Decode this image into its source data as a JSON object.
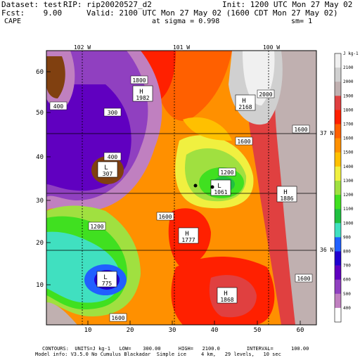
{
  "header": {
    "dataset": "Dataset: test",
    "rip": "RIP: rip20020527_d2",
    "init": "Init: 1200 UTC Mon 27 May 02",
    "fcst": "Fcst:    9.00",
    "valid": "Valid: 2100 UTC Mon 27 May 02 (1600 CDT Mon 27 May 02)",
    "field": "CAPE",
    "sigma": "at sigma = 0.998",
    "sm": "sm= 1"
  },
  "footer": {
    "contours": "CONTOURS:  UNITS=J kg-1   LOW=    300.00      HIGH=   2100.0         INTERVAL=      100.00",
    "model": "Model info: V3.5.0 No Cumulus Blackadar  Simple ice     4 km,   29 levels,   10 sec"
  },
  "axes": {
    "x_ticks": [
      "10",
      "20",
      "30",
      "40",
      "50",
      "60"
    ],
    "y_ticks": [
      "60",
      "50",
      "40",
      "30",
      "20",
      "10"
    ],
    "lon_labels": [
      "102 W",
      "101 W",
      "100 W"
    ],
    "lat_labels": [
      "37 N",
      "36 N"
    ]
  },
  "colorbar": {
    "unit": "J kg-1",
    "levels": [
      "2100",
      "2000",
      "1900",
      "1800",
      "1700",
      "1600",
      "1500",
      "1400",
      "1300",
      "1200",
      "1100",
      "1000",
      "900",
      "800",
      "700",
      "600",
      "500",
      "400"
    ],
    "colors": [
      "#f0f0f0",
      "#d0d0d0",
      "#c0b0b0",
      "#e04040",
      "#ff2000",
      "#ff6000",
      "#ff9000",
      "#ffc000",
      "#f0f040",
      "#a0e040",
      "#40e020",
      "#20c040",
      "#40e0c0",
      "#2060ff",
      "#2000d0",
      "#6000c0",
      "#9040c0",
      "#c080c0",
      "#ffffff"
    ]
  },
  "labels": [
    {
      "kind": "H",
      "value": "1982"
    },
    {
      "kind": "H",
      "value": "2168"
    },
    {
      "kind": "L",
      "value": "307"
    },
    {
      "kind": "L",
      "value": "1061"
    },
    {
      "kind": "H",
      "value": "1886"
    },
    {
      "kind": "H",
      "value": "1777"
    },
    {
      "kind": "L",
      "value": "775"
    },
    {
      "kind": "H",
      "value": "1868"
    }
  ],
  "contour_labels": [
    "1800",
    "400",
    "300",
    "2000",
    "1600",
    "1600",
    "400",
    "1200",
    "1600",
    "1200",
    "1600",
    "1600"
  ]
}
